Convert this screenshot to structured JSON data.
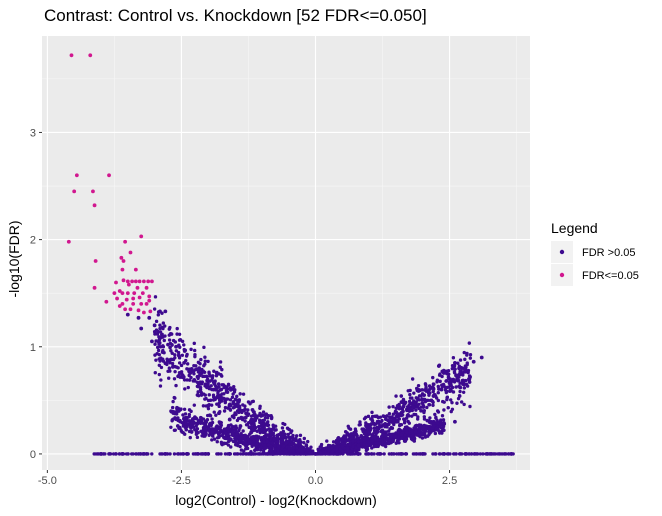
{
  "chart_data": {
    "type": "scatter",
    "title": "Contrast: Control vs. Knockdown [52 FDR<=0.050]",
    "xlabel": "log2(Control) - log2(Knockdown)",
    "ylabel": "-log10(FDR)",
    "xlim": [
      -5.1,
      4.0
    ],
    "ylim": [
      -0.15,
      3.9
    ],
    "x_ticks": [
      -5.0,
      -2.5,
      0.0,
      2.5
    ],
    "x_tick_labels": [
      "-5.0",
      "-2.5",
      "0.0",
      "2.5"
    ],
    "y_ticks": [
      0,
      1,
      2,
      3
    ],
    "y_tick_labels": [
      "0",
      "1",
      "2",
      "3"
    ],
    "grid": true,
    "background": "#ebebeb",
    "legend": {
      "title": "Legend",
      "position": "right",
      "entries": [
        {
          "label": "FDR >0.05",
          "color": "#3d0a8f"
        },
        {
          "label": "FDR<=0.05",
          "color": "#d1178f"
        }
      ]
    },
    "series": [
      {
        "name": "FDR<=0.05",
        "color": "#d1178f",
        "points": [
          [
            -4.55,
            3.72
          ],
          [
            -4.2,
            3.72
          ],
          [
            -4.45,
            2.6
          ],
          [
            -3.85,
            2.6
          ],
          [
            -4.5,
            2.45
          ],
          [
            -4.15,
            2.45
          ],
          [
            -4.12,
            2.32
          ],
          [
            -4.6,
            1.98
          ],
          [
            -3.55,
            1.98
          ],
          [
            -3.25,
            2.03
          ],
          [
            -3.45,
            1.88
          ],
          [
            -3.62,
            1.83
          ],
          [
            -3.58,
            1.8
          ],
          [
            -4.1,
            1.8
          ],
          [
            -3.35,
            1.72
          ],
          [
            -3.6,
            1.72
          ],
          [
            -3.5,
            1.61
          ],
          [
            -3.42,
            1.61
          ],
          [
            -3.35,
            1.61
          ],
          [
            -3.28,
            1.61
          ],
          [
            -3.2,
            1.61
          ],
          [
            -3.12,
            1.61
          ],
          [
            -3.05,
            1.61
          ],
          [
            -4.12,
            1.55
          ],
          [
            -3.65,
            1.52
          ],
          [
            -3.5,
            1.5
          ],
          [
            -3.4,
            1.45
          ],
          [
            -3.22,
            1.5
          ],
          [
            -3.25,
            1.4
          ],
          [
            -3.15,
            1.4
          ],
          [
            -3.1,
            1.43
          ],
          [
            -3.6,
            1.4
          ],
          [
            -3.7,
            1.45
          ],
          [
            -3.9,
            1.42
          ],
          [
            -3.55,
            1.35
          ],
          [
            -3.45,
            1.35
          ],
          [
            -3.3,
            1.34
          ],
          [
            -3.2,
            1.32
          ],
          [
            -3.08,
            1.33
          ],
          [
            -3.6,
            1.5
          ],
          [
            -3.75,
            1.5
          ],
          [
            -3.1,
            1.47
          ],
          [
            -3.15,
            1.55
          ],
          [
            -3.38,
            1.5
          ],
          [
            -3.52,
            1.44
          ],
          [
            -3.28,
            1.46
          ],
          [
            -3.65,
            1.38
          ],
          [
            -3.4,
            1.4
          ],
          [
            -3.48,
            1.58
          ],
          [
            -3.32,
            1.55
          ],
          [
            -3.58,
            1.62
          ],
          [
            -3.72,
            1.6
          ]
        ]
      },
      {
        "name": "FDR >0.05",
        "color": "#3d0a8f",
        "points": [
          [
            -3.5,
            1.3
          ],
          [
            -3.3,
            1.27
          ],
          [
            -3.1,
            1.27
          ],
          [
            -2.9,
            1.33
          ],
          [
            -2.8,
            1.33
          ],
          [
            -3.0,
            1.2
          ],
          [
            -2.85,
            1.18
          ],
          [
            -3.25,
            1.17
          ],
          [
            -2.95,
            1.12
          ],
          [
            -2.7,
            1.12
          ],
          [
            -3.05,
            1.05
          ],
          [
            -2.75,
            1.02
          ],
          [
            -2.6,
            1.0
          ],
          [
            -2.85,
            0.95
          ],
          [
            -2.55,
            0.92
          ],
          [
            -2.7,
            0.88
          ],
          [
            -2.45,
            0.85
          ],
          [
            -2.35,
            0.78
          ],
          [
            -2.2,
            0.72
          ],
          [
            -2.05,
            0.65
          ],
          [
            -1.9,
            0.6
          ],
          [
            -1.75,
            0.52
          ],
          [
            -1.6,
            0.46
          ],
          [
            -1.45,
            0.4
          ],
          [
            -1.3,
            0.34
          ],
          [
            -1.15,
            0.28
          ],
          [
            -1.0,
            0.23
          ],
          [
            -0.85,
            0.18
          ],
          [
            -0.7,
            0.14
          ],
          [
            -0.55,
            0.1
          ],
          [
            -0.4,
            0.06
          ],
          [
            -0.25,
            0.03
          ],
          [
            -0.1,
            0.01
          ],
          [
            0.1,
            0.01
          ],
          [
            0.25,
            0.03
          ],
          [
            0.4,
            0.06
          ],
          [
            0.55,
            0.09
          ],
          [
            0.7,
            0.12
          ],
          [
            0.85,
            0.16
          ],
          [
            1.0,
            0.2
          ],
          [
            1.15,
            0.24
          ],
          [
            1.3,
            0.28
          ],
          [
            1.45,
            0.32
          ],
          [
            1.6,
            0.36
          ],
          [
            1.75,
            0.4
          ],
          [
            1.9,
            0.44
          ],
          [
            2.05,
            0.49
          ],
          [
            2.2,
            0.54
          ],
          [
            2.35,
            0.6
          ],
          [
            2.5,
            0.66
          ],
          [
            2.65,
            0.72
          ],
          [
            2.8,
            0.78
          ],
          [
            2.95,
            0.86
          ],
          [
            3.1,
            0.9
          ],
          [
            2.3,
            0.82
          ],
          [
            2.45,
            0.75
          ],
          [
            2.6,
            0.85
          ],
          [
            2.7,
            0.62
          ],
          [
            -2.2,
            0.55
          ],
          [
            -2.0,
            0.45
          ],
          [
            -1.8,
            0.38
          ],
          [
            -1.6,
            0.32
          ],
          [
            -1.4,
            0.26
          ],
          [
            -1.2,
            0.2
          ],
          [
            -1.0,
            0.15
          ],
          [
            -0.8,
            0.1
          ],
          [
            -0.6,
            0.07
          ],
          [
            0.6,
            0.05
          ],
          [
            0.8,
            0.08
          ],
          [
            1.0,
            0.11
          ],
          [
            1.2,
            0.13
          ],
          [
            1.4,
            0.16
          ],
          [
            1.6,
            0.18
          ],
          [
            1.8,
            0.21
          ],
          [
            2.0,
            0.23
          ],
          [
            2.2,
            0.26
          ],
          [
            2.4,
            0.28
          ],
          [
            2.6,
            0.3
          ],
          [
            -4.0,
            0.0
          ],
          [
            -3.6,
            0.0
          ],
          [
            -3.2,
            0.0
          ],
          [
            -2.8,
            0.0
          ],
          [
            -2.4,
            0.0
          ],
          [
            -2.0,
            0.0
          ],
          [
            -1.6,
            0.0
          ],
          [
            -1.2,
            0.0
          ],
          [
            -0.8,
            0.0
          ],
          [
            -0.4,
            0.0
          ],
          [
            0.0,
            0.0
          ],
          [
            0.4,
            0.0
          ],
          [
            0.8,
            0.0
          ],
          [
            1.2,
            0.0
          ],
          [
            1.6,
            0.0
          ],
          [
            2.0,
            0.0
          ],
          [
            2.4,
            0.0
          ],
          [
            2.8,
            0.0
          ],
          [
            3.2,
            0.0
          ],
          [
            3.65,
            0.0
          ]
        ]
      }
    ],
    "bands": [
      {
        "name": "left-upper",
        "color": "#3d0a8f",
        "x": [
          -3.0,
          -0.05
        ],
        "y": [
          [
            1.1,
            0.2
          ],
          [
            0.0,
            0.0
          ]
        ],
        "sd": 0.12
      },
      {
        "name": "left-lower",
        "color": "#3d0a8f",
        "x": [
          -2.7,
          -0.05
        ],
        "y": [
          [
            0.35,
            0.08
          ],
          [
            0.0,
            0.0
          ]
        ],
        "sd": 0.06
      },
      {
        "name": "right-upper",
        "color": "#3d0a8f",
        "x": [
          0.05,
          2.9
        ],
        "y": [
          [
            0.0,
            0.0
          ],
          [
            0.55,
            0.78
          ]
        ],
        "sd": 0.1
      },
      {
        "name": "right-lower",
        "color": "#3d0a8f",
        "x": [
          0.05,
          2.4
        ],
        "y": [
          [
            0.0,
            0.0
          ],
          [
            0.22,
            0.28
          ]
        ],
        "sd": 0.04
      }
    ]
  }
}
